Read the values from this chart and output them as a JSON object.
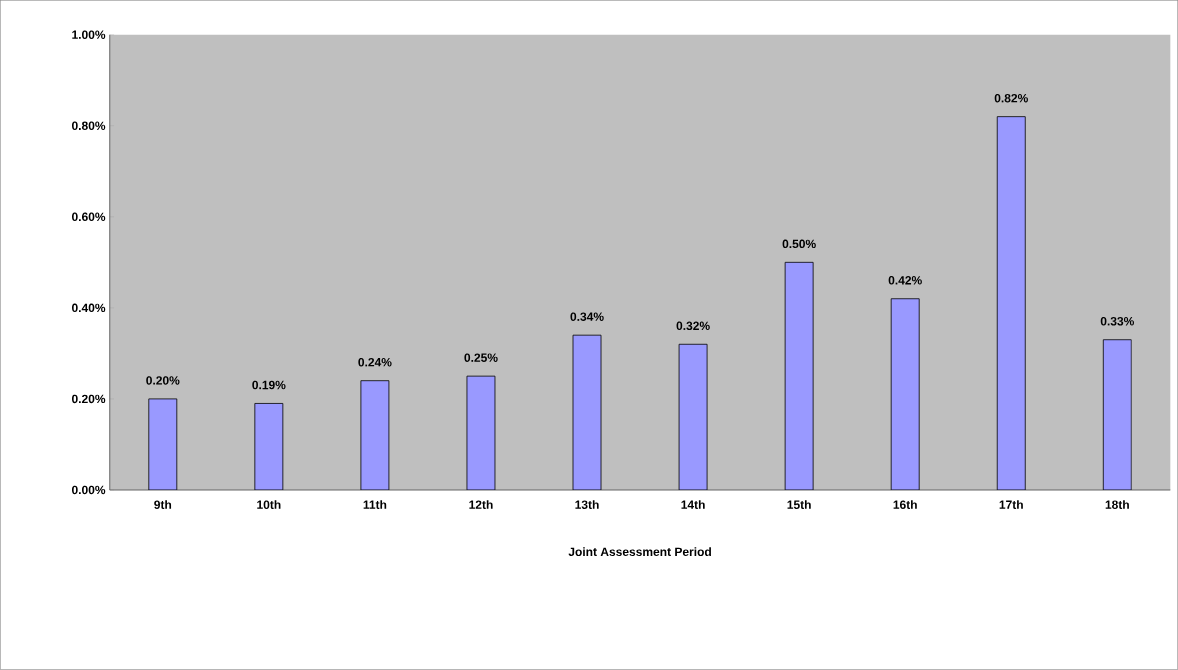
{
  "chart_data": {
    "type": "bar",
    "xlabel": "Joint Assessment Period",
    "categories": [
      "9th",
      "10th",
      "11th",
      "12th",
      "13th",
      "14th",
      "15th",
      "16th",
      "17th",
      "18th"
    ],
    "values": [
      0.2,
      0.19,
      0.24,
      0.25,
      0.34,
      0.32,
      0.5,
      0.42,
      0.82,
      0.33
    ],
    "value_labels": [
      "0.20%",
      "0.19%",
      "0.24%",
      "0.25%",
      "0.34%",
      "0.32%",
      "0.50%",
      "0.42%",
      "0.82%",
      "0.33%"
    ],
    "color": "#9999ff",
    "ylim": [
      0,
      1.0
    ],
    "yticks": [
      {
        "value": 0,
        "label": "0.00%"
      },
      {
        "value": 0.2,
        "label": "0.20%"
      },
      {
        "value": 0.4,
        "label": "0.40%"
      },
      {
        "value": 0.6,
        "label": "0.60%"
      },
      {
        "value": 0.8,
        "label": "0.80%"
      },
      {
        "value": 1.0,
        "label": "1.00%"
      }
    ],
    "grid": false
  }
}
